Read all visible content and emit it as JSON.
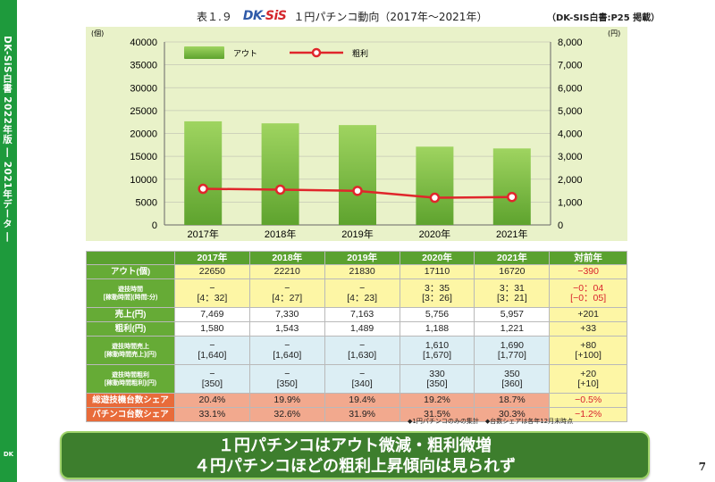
{
  "side_text": "DK-SiS白書 2022年版 ― 2021年データ ―",
  "side_logo": "DK",
  "title": {
    "fig_no": "表１.９",
    "brand_1": "DK-",
    "brand_2": "SiS",
    "caption": "１円パチンコ動向（2017年〜2021年）"
  },
  "source": "（DK-SIS白書:P25 掲載）",
  "chart_data": {
    "type": "bar",
    "categories": [
      "2017年",
      "2018年",
      "2019年",
      "2020年",
      "2021年"
    ],
    "series": [
      {
        "name": "アウト",
        "type": "bar",
        "axis": "left",
        "values": [
          22650,
          22210,
          21830,
          17110,
          16720
        ]
      },
      {
        "name": "粗利",
        "type": "line",
        "axis": "right",
        "values": [
          1580,
          1543,
          1489,
          1188,
          1221
        ]
      }
    ],
    "y_left": {
      "unit": "(個)",
      "ylim": [
        0,
        40000
      ],
      "ticks": [
        "0",
        "5000",
        "10000",
        "15000",
        "20000",
        "25000",
        "30000",
        "35000",
        "40000"
      ]
    },
    "y_right": {
      "unit": "(円)",
      "ylim": [
        0,
        8000
      ],
      "ticks": [
        "0",
        "1,000",
        "2,000",
        "3,000",
        "4,000",
        "5,000",
        "6,000",
        "7,000",
        "8,000"
      ]
    },
    "grid": true,
    "legend": "top-left",
    "colors": {
      "bar": "#5ea32e",
      "bar_light": "#9fd460",
      "line": "#e0262b",
      "panel": "#e9f2c9"
    }
  },
  "table": {
    "headers": [
      "2017年",
      "2018年",
      "2019年",
      "2020年",
      "2021年",
      "対前年"
    ],
    "rows": [
      {
        "label": "アウト(個)",
        "values": [
          "22650",
          "22210",
          "21830",
          "17110",
          "16720"
        ],
        "change": "−390"
      },
      {
        "label": "遊技時間\n[稼動時間](時間:分)",
        "values": [
          "−\n[4：32]",
          "−\n[4：27]",
          "−\n[4：23]",
          "3：35\n[3：26]",
          "3：31\n[3：21]"
        ],
        "change": "−0：04\n[−0：05]"
      },
      {
        "label": "売上(円)",
        "values": [
          "7,469",
          "7,330",
          "7,163",
          "5,756",
          "5,957"
        ],
        "change": "+201"
      },
      {
        "label": "粗利(円)",
        "values": [
          "1,580",
          "1,543",
          "1,489",
          "1,188",
          "1,221"
        ],
        "change": "+33"
      },
      {
        "label": "遊技時間売上\n[稼動時間売上](円)",
        "values": [
          "−\n[1,640]",
          "−\n[1,640]",
          "−\n[1,630]",
          "1,610\n[1,670]",
          "1,690\n[1,770]"
        ],
        "change": "+80\n[+100]"
      },
      {
        "label": "遊技時間粗利\n[稼動時間粗利](円)",
        "values": [
          "−\n[350]",
          "−\n[350]",
          "−\n[340]",
          "330\n[350]",
          "350\n[360]"
        ],
        "change": "+20\n[+10]"
      },
      {
        "label": "総遊技機台数シェア",
        "values": [
          "20.4%",
          "19.9%",
          "19.4%",
          "19.2%",
          "18.7%"
        ],
        "change": "−0.5%"
      },
      {
        "label": "パチンコ台数シェア",
        "values": [
          "33.1%",
          "32.6%",
          "31.9%",
          "31.5%",
          "30.3%"
        ],
        "change": "−1.2%"
      }
    ]
  },
  "footnote": "◆1円パチンコのみの集計　◆台数シェアは各年12月末時点",
  "banner": {
    "line1": "１円パチンコはアウト微減・粗利微増",
    "line2": "４円パチンコほどの粗利上昇傾向は見られず"
  },
  "page_number": "7"
}
